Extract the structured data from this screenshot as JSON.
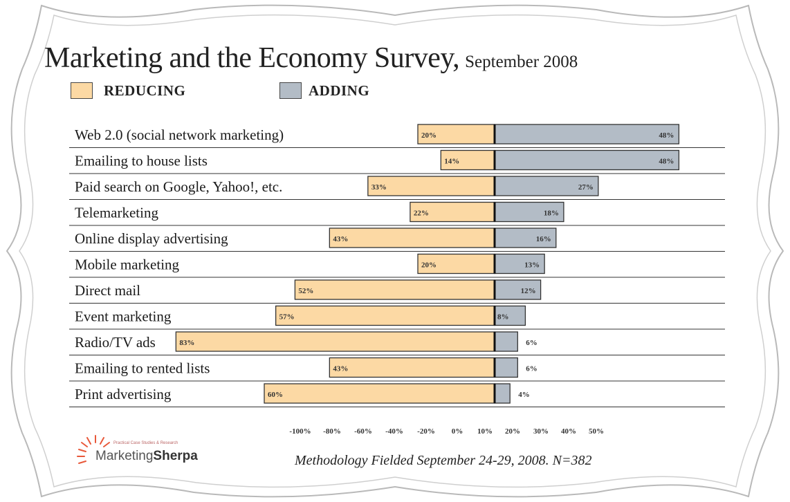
{
  "page": {
    "title": "Marketing and the Economy Survey,",
    "title_date": "September 2008",
    "legend": [
      {
        "label": "REDUCING",
        "color": "#fcd9a4"
      },
      {
        "label": "ADDING",
        "color": "#b3bcc6"
      }
    ],
    "footnote": "Methodology Fielded September 24-29, 2008. N=382",
    "logo": {
      "tagline": "Practical Case Studies & Research",
      "name_part1": "Marketing",
      "name_part2": "Sherpa"
    }
  },
  "chart_data": {
    "type": "bar",
    "orientation": "horizontal-diverging",
    "title": "Marketing and the Economy Survey, September 2008",
    "categories": [
      "Web 2.0 (social network marketing)",
      "Emailing to house lists",
      "Paid search on Google, Yahoo!, etc.",
      "Telemarketing",
      "Online display advertising",
      "Mobile marketing",
      "Direct mail",
      "Event marketing",
      "Radio/TV ads",
      "Emailing to rented lists",
      "Print advertising"
    ],
    "series": [
      {
        "name": "REDUCING",
        "color": "#fcd9a4",
        "values": [
          20,
          14,
          33,
          22,
          43,
          20,
          52,
          57,
          83,
          43,
          60
        ],
        "labels": [
          "20%",
          "14%",
          "33%",
          "22%",
          "43%",
          "20%",
          "52%",
          "57%",
          "83%",
          "43%",
          "60%"
        ]
      },
      {
        "name": "ADDING",
        "color": "#b3bcc6",
        "values": [
          48,
          48,
          27,
          18,
          16,
          13,
          12,
          8,
          6,
          6,
          4
        ],
        "labels": [
          "48%",
          "48%",
          "27%",
          "18%",
          "16%",
          "13%",
          "12%",
          "8%",
          "6%",
          "6%",
          "4%"
        ]
      }
    ],
    "xlim": [
      -100,
      50
    ],
    "xticks": [
      "-100%",
      "-80%",
      "-60%",
      "-40%",
      "-20%",
      "0%",
      "10%",
      "20%",
      "30%",
      "40%",
      "50%"
    ],
    "legend_position": "top-left",
    "grid": "horizontal row lines"
  }
}
